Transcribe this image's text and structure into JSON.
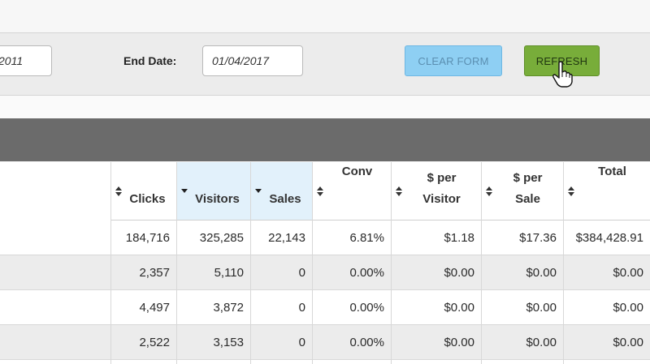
{
  "filters": {
    "start_date_value": "2011",
    "end_date_label": "End Date:",
    "end_date_value": "01/04/2017",
    "clear_label": "CLEAR FORM",
    "refresh_label": "REFRESH"
  },
  "table": {
    "columns": [
      {
        "key": "clicks",
        "lines": [
          "",
          "Clicks"
        ],
        "sort_icon": "sort-both-icon"
      },
      {
        "key": "visitors",
        "lines": [
          "",
          "Visitors"
        ],
        "sort_icon": "sort-desc-icon",
        "sorted": true
      },
      {
        "key": "sales",
        "lines": [
          "",
          "Sales"
        ],
        "sort_icon": "sort-desc-icon",
        "sorted": true
      },
      {
        "key": "conv",
        "lines": [
          "Conv",
          ""
        ],
        "sort_icon": "sort-both-icon"
      },
      {
        "key": "per_visitor",
        "lines": [
          "$ per",
          "Visitor"
        ],
        "sort_icon": "sort-both-icon"
      },
      {
        "key": "per_sale",
        "lines": [
          "$ per",
          "Sale"
        ],
        "sort_icon": "sort-both-icon"
      },
      {
        "key": "total",
        "lines": [
          "Total",
          ""
        ],
        "sort_icon": "sort-both-icon"
      }
    ],
    "rows": [
      [
        "184,716",
        "325,285",
        "22,143",
        "6.81%",
        "$1.18",
        "$17.36",
        "$384,428.91"
      ],
      [
        "2,357",
        "5,110",
        "0",
        "0.00%",
        "$0.00",
        "$0.00",
        "$0.00"
      ],
      [
        "4,497",
        "3,872",
        "0",
        "0.00%",
        "$0.00",
        "$0.00",
        "$0.00"
      ],
      [
        "2,522",
        "3,153",
        "0",
        "0.00%",
        "$0.00",
        "$0.00",
        "$0.00"
      ]
    ]
  },
  "colors": {
    "accent_blue": "#8ecff3",
    "accent_green": "#78ad3a",
    "sorted_header": "#e2f1fb",
    "header_bar": "#6b6b6b"
  }
}
